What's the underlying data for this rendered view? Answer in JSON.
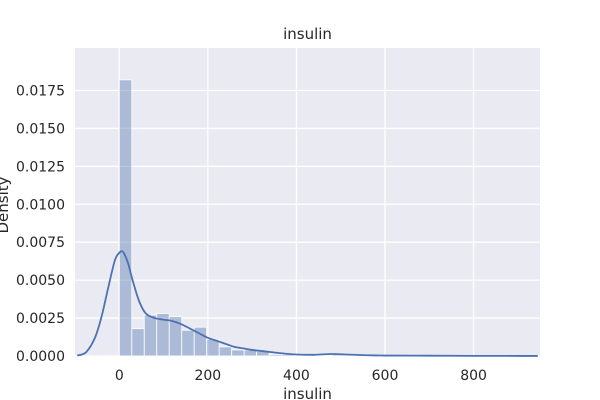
{
  "chart_data": {
    "type": "bar",
    "title": "insulin",
    "xlabel": "insulin",
    "ylabel": "Density",
    "xlim": [
      -100,
      950
    ],
    "ylim": [
      0,
      0.0203
    ],
    "x_ticks": [
      0,
      200,
      400,
      600,
      800
    ],
    "y_ticks": [
      0.0,
      0.0025,
      0.005,
      0.0075,
      0.01,
      0.0125,
      0.015,
      0.0175
    ],
    "x_tick_labels": [
      "0",
      "200",
      "400",
      "600",
      "800"
    ],
    "y_tick_labels": [
      "0.0000",
      "0.0025",
      "0.0050",
      "0.0075",
      "0.0100",
      "0.0125",
      "0.0150",
      "0.0175"
    ],
    "grid": true,
    "colors": {
      "background": "#eaeaf2",
      "grid": "#ffffff",
      "hist_fill": "#4c72b0",
      "hist_opacity": 0.4,
      "kde_line": "#4c72b0"
    },
    "histogram": {
      "bin_width": 28.2,
      "bin_start": 0,
      "densities": [
        0.0182,
        0.0018,
        0.0027,
        0.0028,
        0.0026,
        0.0017,
        0.0019,
        0.0011,
        0.0006,
        0.0004,
        0.0004,
        0.0003,
        0.0001,
        0.0001,
        5e-05,
        3e-05,
        5e-05,
        8e-05,
        5e-05,
        2e-05,
        3e-05,
        2e-05,
        1e-05,
        1e-05,
        1e-05,
        1e-05,
        1e-05,
        1e-05,
        1e-05,
        1e-05
      ]
    },
    "kde": {
      "x": [
        -95,
        -75,
        -55,
        -40,
        -25,
        -10,
        0,
        5,
        10,
        20,
        30,
        45,
        60,
        80,
        100,
        120,
        140,
        160,
        180,
        200,
        220,
        240,
        260,
        280,
        300,
        330,
        360,
        400,
        440,
        480,
        520,
        560,
        600,
        700,
        800,
        900,
        945
      ],
      "y": [
        3e-05,
        0.00025,
        0.0012,
        0.0026,
        0.0045,
        0.0063,
        0.0068,
        0.0069,
        0.0068,
        0.0061,
        0.005,
        0.0036,
        0.0028,
        0.0025,
        0.0024,
        0.0023,
        0.0021,
        0.0018,
        0.0015,
        0.0012,
        0.001,
        0.0008,
        0.0006,
        0.0005,
        0.0004,
        0.0003,
        0.0002,
        0.0001,
        8e-05,
        0.00013,
        9e-05,
        5e-05,
        3e-05,
        2e-05,
        1e-05,
        5e-06,
        3e-06
      ]
    }
  }
}
